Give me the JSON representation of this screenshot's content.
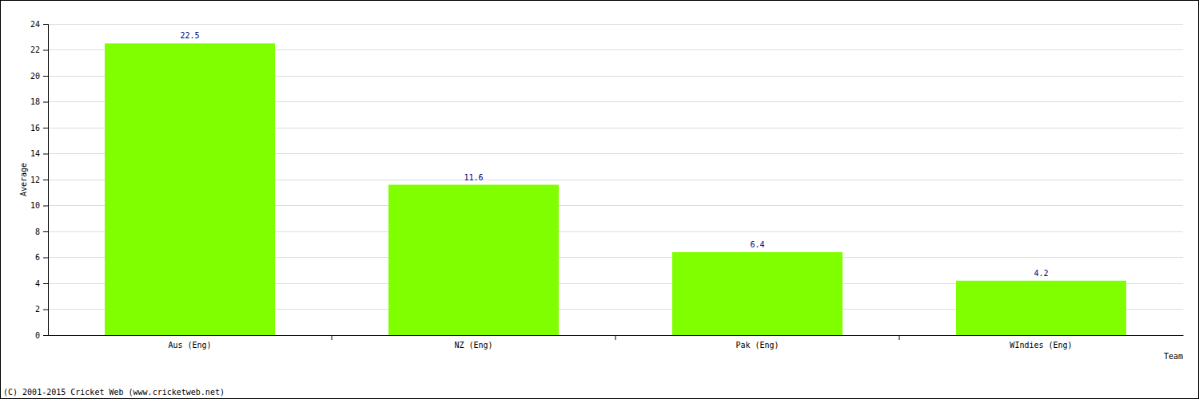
{
  "chart_data": {
    "type": "bar",
    "categories": [
      "Aus (Eng)",
      "NZ (Eng)",
      "Pak (Eng)",
      "WIndies (Eng)"
    ],
    "values": [
      22.5,
      11.6,
      6.4,
      4.2
    ],
    "color": "#7fff00",
    "x_label": "Team",
    "y_label": "Average",
    "ylim": [
      0,
      24
    ],
    "yticks": [
      0,
      2,
      4,
      6,
      8,
      10,
      12,
      14,
      16,
      18,
      20,
      22,
      24
    ],
    "grid": true,
    "data_labels": true,
    "annotations": [
      "(C) 2001-2015 Cricket Web (www.cricketweb.net)"
    ]
  }
}
